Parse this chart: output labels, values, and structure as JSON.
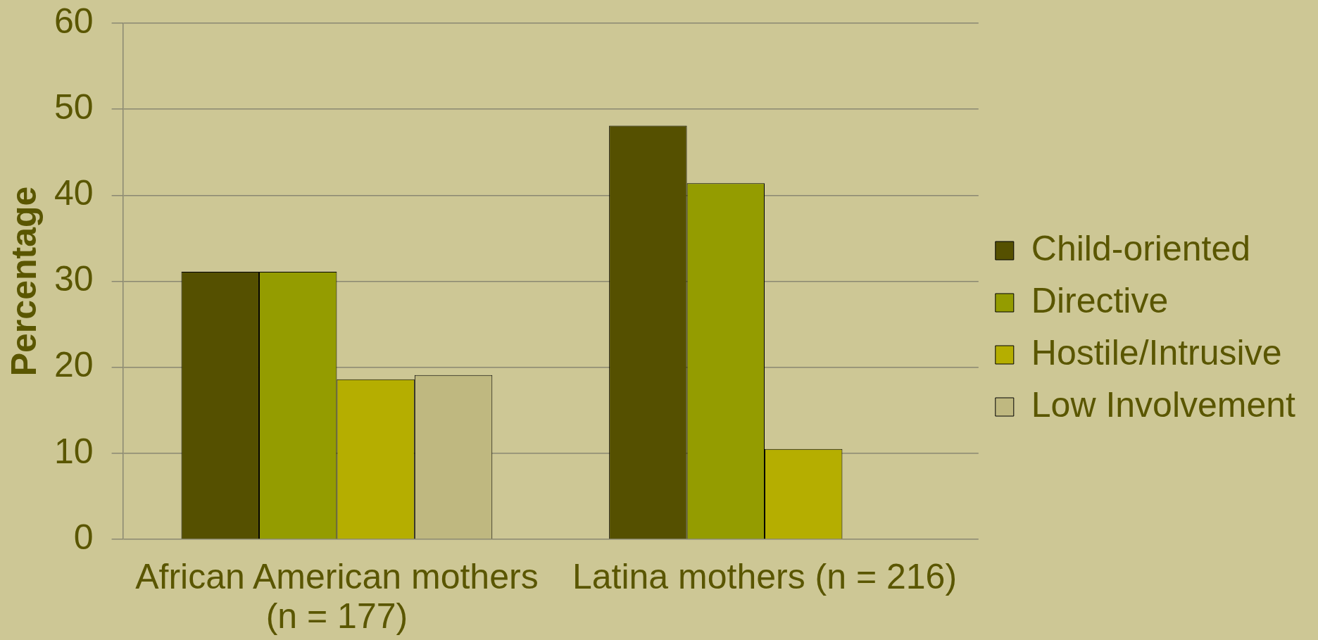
{
  "chart_data": {
    "type": "bar",
    "ylabel": "Percentage",
    "categories": [
      "African American mothers (n = 177)",
      "Latina mothers (n = 216)"
    ],
    "series": [
      {
        "name": "Child-oriented",
        "color": "#555000",
        "values": [
          31.1,
          48.1
        ]
      },
      {
        "name": "Directive",
        "color": "#949c00",
        "values": [
          31.1,
          41.4
        ]
      },
      {
        "name": "Hostile/Intrusive",
        "color": "#b5ae00",
        "values": [
          18.6,
          10.5
        ]
      },
      {
        "name": "Low Involvement",
        "color": "#bfb880",
        "values": [
          19.1,
          null
        ]
      }
    ],
    "ylim": [
      0,
      60
    ],
    "yticks": [
      0,
      10,
      20,
      30,
      40,
      50,
      60
    ],
    "grid": "y",
    "legend": "right"
  }
}
